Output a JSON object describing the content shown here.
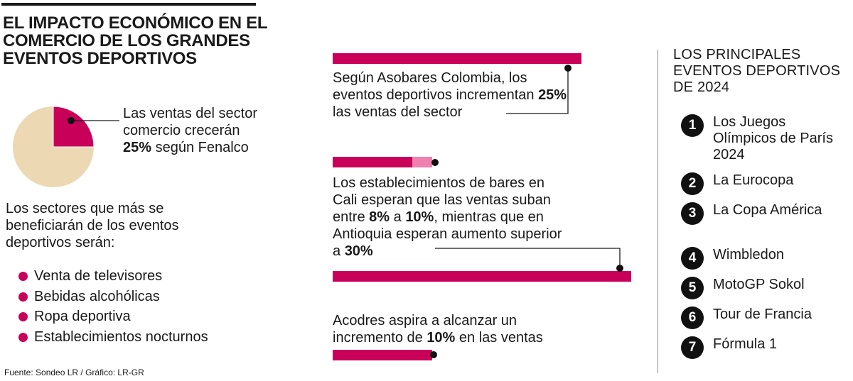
{
  "title": "EL IMPACTO ECONÓMICO EN EL COMERCIO DE LOS GRANDES EVENTOS DEPORTIVOS",
  "colors": {
    "accent": "#c9005a",
    "accent_light": "#f080b0",
    "pie_rest": "#ecd9b4",
    "text": "#1a1a1a"
  },
  "pie": {
    "text_before": "Las ventas del sector comercio crecerán",
    "value_text": "25%",
    "text_after": "según Fenalco"
  },
  "sectors": {
    "intro": "Los sectores que más se beneficiarán de los eventos deportivos serán:",
    "items": [
      "Venta de televisores",
      "Bebidas alcohólicas",
      "Ropa deportiva",
      "Establecimientos nocturnos"
    ]
  },
  "stats": {
    "asobares": {
      "text_before": "Según Asobares Colombia, los eventos deportivos incrementan",
      "value_text": "25%",
      "text_after": "las ventas del sector"
    },
    "cali": {
      "text_before": "Los establecimientos de bares en Cali esperan que las ventas suban entre",
      "low_text": "8%",
      "mid_text": "a",
      "high_text": "10%",
      "text_after": ", mientras que en Antioquia esperan aumento superior a",
      "antioquia_text": "30%"
    },
    "acodres": {
      "text_before": "Acodres aspira a alcanzar un incremento de",
      "value_text": "10%",
      "text_after": "en las ventas"
    }
  },
  "source": "Fuente: Sondeo LR / Gráfico: LR-GR",
  "events": {
    "title": "LOS PRINCIPALES EVENTOS DEPORTIVOS DE 2024",
    "items": [
      {
        "num": "1",
        "label": "Los Juegos Olímpicos de París 2024"
      },
      {
        "num": "2",
        "label": "La Eurocopa"
      },
      {
        "num": "3",
        "label": "La Copa América"
      },
      {
        "num": "4",
        "label": "Wimbledon"
      },
      {
        "num": "5",
        "label": "MotoGP Sokol"
      },
      {
        "num": "6",
        "label": "Tour de Francia"
      },
      {
        "num": "7",
        "label": "Fórmula 1"
      }
    ]
  },
  "chart_data": [
    {
      "type": "pie",
      "categories": [
        "Comercio",
        ""
      ],
      "values": [
        25,
        75
      ]
    },
    {
      "type": "bar",
      "categories": [
        "Asobares Colombia",
        "Cali (mínimo)",
        "Cali (máximo)",
        "Antioquia",
        "Acodres"
      ],
      "values": [
        25,
        8,
        10,
        30,
        10
      ]
    }
  ]
}
